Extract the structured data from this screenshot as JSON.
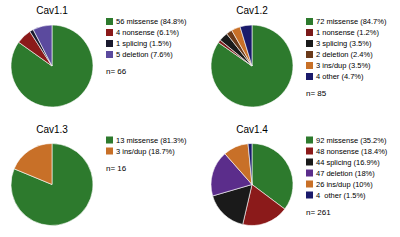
{
  "chart_data": [
    {
      "type": "pie",
      "title": "Cav1.1",
      "categories": [
        "56 missense (84.8%)",
        "4 nonsense (6.1%)",
        "1 splicing (1.5%)",
        "5 deletion (7.6%)"
      ],
      "values": [
        56,
        4,
        1,
        5
      ],
      "colors": [
        "#2d7a2d",
        "#8b1a1a",
        "#1a1a2e",
        "#5b4a9e"
      ],
      "annotation": "n= 66",
      "legend": "right"
    },
    {
      "type": "pie",
      "title": "Cav1.2",
      "categories": [
        "72 missense (84.7%)",
        "1 nonsense (1.2%)",
        "3 splicing (3.5%)",
        "2 deletion (2.4%)",
        "3 ins/dup (3.5%)",
        "4 other (4.7%)"
      ],
      "values": [
        72,
        1,
        3,
        2,
        3,
        4
      ],
      "colors": [
        "#2d7a2d",
        "#7a1a1a",
        "#1a1a1a",
        "#6b3a1a",
        "#c87028",
        "#1a1a6b"
      ],
      "annotation": "n= 85",
      "legend": "right"
    },
    {
      "type": "pie",
      "title": "Cav1.3",
      "categories": [
        "13 missense (81.3%)",
        "3 ins/dup (18.7%)"
      ],
      "values": [
        13,
        3
      ],
      "colors": [
        "#2d7a2d",
        "#c87028"
      ],
      "annotation": "n= 16",
      "legend": "right"
    },
    {
      "type": "pie",
      "title": "Cav1.4",
      "categories": [
        "92 missense (35.2%)",
        "48 nonsense (18.4%)",
        "44 splicing (16.9%)",
        "47 deletion (18%)",
        "26 ins/dup (10%)",
        "4  other (1.5%)"
      ],
      "values": [
        92,
        48,
        44,
        47,
        26,
        4
      ],
      "colors": [
        "#2d7a2d",
        "#8b1a1a",
        "#1a1a1a",
        "#5b2d8b",
        "#c87028",
        "#1a1a6b"
      ],
      "annotation": "n= 261",
      "legend": "right"
    }
  ]
}
